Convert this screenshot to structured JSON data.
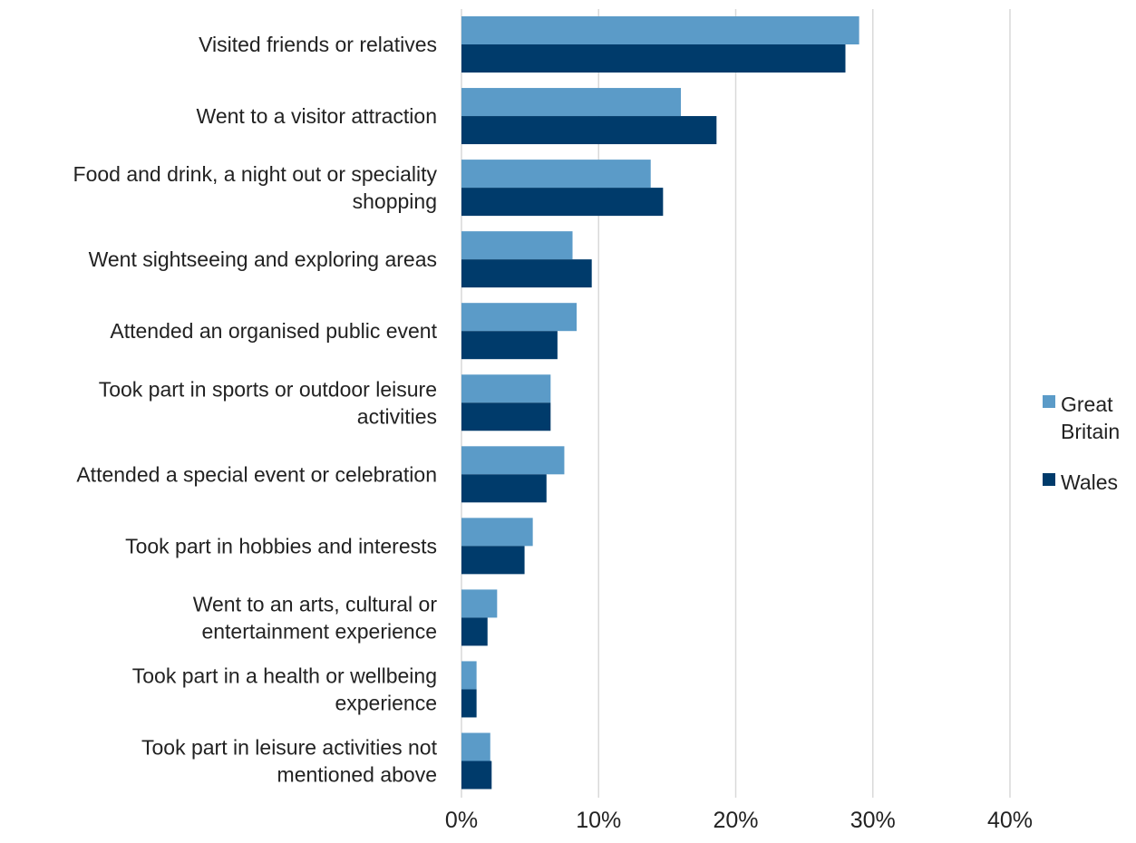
{
  "chart_data": {
    "type": "bar",
    "orientation": "horizontal",
    "title": "",
    "xlabel": "",
    "ylabel": "",
    "categories": [
      [
        "Visited friends or relatives"
      ],
      [
        "Went to a visitor attraction"
      ],
      [
        "Food and drink, a night out or speciality",
        "shopping"
      ],
      [
        "Went sightseeing and exploring areas"
      ],
      [
        "Attended an organised public event"
      ],
      [
        "Took part in sports or outdoor leisure",
        "activities"
      ],
      [
        "Attended a special event or celebration"
      ],
      [
        "Took part in hobbies and interests"
      ],
      [
        "Went to an arts, cultural or",
        "entertainment experience"
      ],
      [
        "Took part in a health or wellbeing",
        "experience"
      ],
      [
        "Took part in leisure activities not",
        "mentioned above"
      ]
    ],
    "series": [
      {
        "name": "Great Britain",
        "legend_lines": [
          "Great",
          "Britain"
        ],
        "color": "#5b9bc8",
        "values": [
          29.0,
          16.0,
          13.8,
          8.1,
          8.4,
          6.5,
          7.5,
          5.2,
          2.6,
          1.1,
          2.1
        ]
      },
      {
        "name": "Wales",
        "legend_lines": [
          "Wales"
        ],
        "color": "#003b6b",
        "values": [
          28.0,
          18.6,
          14.7,
          9.5,
          7.0,
          6.5,
          6.2,
          4.6,
          1.9,
          1.1,
          2.2
        ]
      }
    ],
    "xlim": [
      0,
      40
    ],
    "xticks": [
      0,
      10,
      20,
      30,
      40
    ],
    "xtick_labels": [
      "0%",
      "10%",
      "20%",
      "30%",
      "40%"
    ],
    "grid": true,
    "legend_position": "right"
  }
}
